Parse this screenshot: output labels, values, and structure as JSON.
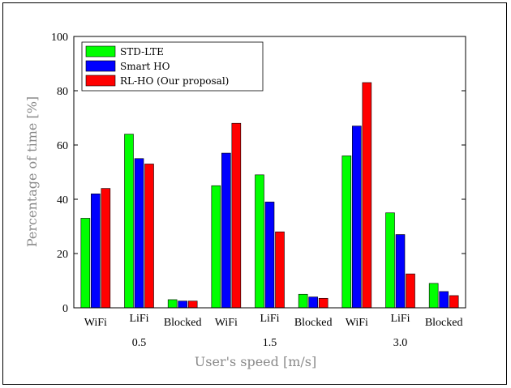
{
  "chart_data": {
    "type": "bar",
    "title": "",
    "xlabel": "User's speed [m/s]",
    "ylabel": "Percentage of time [%]",
    "ylim": [
      0,
      100
    ],
    "yticks": [
      0,
      20,
      40,
      60,
      80,
      100
    ],
    "grid": false,
    "legend_position": "top-left",
    "categories": [
      "WiFi",
      "LiFi",
      "Blocked",
      "WiFi",
      "LiFi",
      "Blocked",
      "WiFi",
      "LiFi",
      "Blocked"
    ],
    "speed_groups": [
      "0.5",
      "1.5",
      "3.0"
    ],
    "series": [
      {
        "name": "STD-LTE",
        "color": "#00ff00",
        "values": [
          33,
          64,
          3,
          45,
          49,
          5,
          56,
          35,
          9
        ]
      },
      {
        "name": "Smart HO",
        "color": "#0000ff",
        "values": [
          42,
          55,
          2.5,
          57,
          39,
          4,
          67,
          27,
          6
        ]
      },
      {
        "name": "RL-HO (Our proposal)",
        "color": "#ff0000",
        "values": [
          44,
          53,
          2.5,
          68,
          28,
          3.5,
          83,
          12.5,
          4.5
        ]
      }
    ]
  }
}
